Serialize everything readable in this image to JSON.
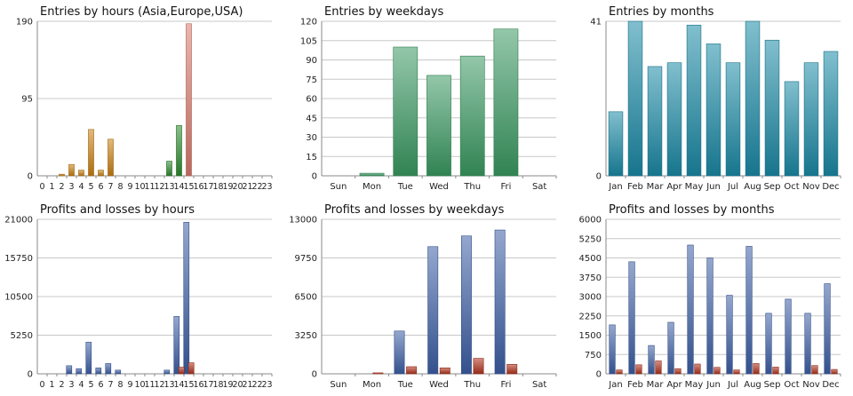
{
  "chart_data": [
    {
      "type": "bar",
      "title": "Entries by hours (Asia,Europe,USA)",
      "categories": [
        "0",
        "1",
        "2",
        "3",
        "4",
        "5",
        "6",
        "7",
        "8",
        "9",
        "10",
        "11",
        "12",
        "13",
        "14",
        "15",
        "16",
        "17",
        "18",
        "19",
        "20",
        "21",
        "22",
        "23"
      ],
      "y_ticks": [
        "0",
        "95",
        "190"
      ],
      "ylim": [
        0,
        190
      ],
      "series": [
        {
          "color": "#c87f12",
          "values": [
            0,
            0,
            2,
            14,
            7,
            57,
            7,
            45,
            0,
            0,
            0,
            0,
            0,
            0,
            0,
            0,
            0,
            0,
            0,
            0,
            0,
            0,
            0,
            0
          ]
        },
        {
          "color": "#2e8a2e",
          "values": [
            0,
            0,
            0,
            0,
            0,
            0,
            0,
            0,
            0,
            0,
            0,
            0,
            0,
            18,
            62,
            0,
            0,
            0,
            0,
            0,
            0,
            0,
            0,
            0
          ]
        },
        {
          "color": "#d87a6c",
          "values": [
            0,
            0,
            0,
            0,
            0,
            0,
            0,
            0,
            0,
            0,
            0,
            0,
            0,
            0,
            0,
            187,
            0,
            0,
            0,
            0,
            0,
            0,
            0,
            0
          ]
        }
      ],
      "grid": true
    },
    {
      "type": "bar",
      "title": "Entries by weekdays",
      "categories": [
        "Sun",
        "Mon",
        "Tue",
        "Wed",
        "Thu",
        "Fri",
        "Sat"
      ],
      "y_ticks": [
        "0",
        "15",
        "30",
        "45",
        "60",
        "75",
        "90",
        "105",
        "120"
      ],
      "ylim": [
        0,
        120
      ],
      "series": [
        {
          "color": "#3a9a62",
          "values": [
            0,
            2,
            100,
            78,
            93,
            114,
            0
          ]
        }
      ],
      "grid": true
    },
    {
      "type": "bar",
      "title": "Entries by months",
      "categories": [
        "Jan",
        "Feb",
        "Mar",
        "Apr",
        "May",
        "Jun",
        "Jul",
        "Aug",
        "Sep",
        "Oct",
        "Nov",
        "Dec"
      ],
      "y_ticks": [
        "0",
        "41"
      ],
      "ylim": [
        0,
        41
      ],
      "series": [
        {
          "color": "#1a8aa6",
          "values": [
            17,
            41,
            29,
            30,
            40,
            35,
            30,
            41,
            36,
            25,
            30,
            33
          ]
        }
      ],
      "grid": true
    },
    {
      "type": "bar",
      "title": "Profits and losses by hours",
      "categories": [
        "0",
        "1",
        "2",
        "3",
        "4",
        "5",
        "6",
        "7",
        "8",
        "9",
        "10",
        "11",
        "12",
        "13",
        "14",
        "15",
        "16",
        "17",
        "18",
        "19",
        "20",
        "21",
        "22",
        "23"
      ],
      "y_ticks": [
        "0",
        "5250",
        "10500",
        "15750",
        "21000"
      ],
      "ylim": [
        0,
        21000
      ],
      "series": [
        {
          "color": "#3d5fa6",
          "values": [
            0,
            0,
            0,
            1100,
            700,
            4300,
            800,
            1400,
            500,
            0,
            0,
            0,
            0,
            500,
            7800,
            20600,
            0,
            0,
            0,
            0,
            0,
            0,
            0,
            0
          ]
        },
        {
          "color": "#b0321c",
          "values": [
            0,
            0,
            0,
            0,
            0,
            0,
            0,
            0,
            0,
            0,
            0,
            0,
            0,
            0,
            900,
            1500,
            0,
            0,
            0,
            0,
            0,
            0,
            0,
            0
          ]
        }
      ],
      "grid": true
    },
    {
      "type": "bar",
      "title": "Profits and losses by weekdays",
      "categories": [
        "Sun",
        "Mon",
        "Tue",
        "Wed",
        "Thu",
        "Fri",
        "Sat"
      ],
      "y_ticks": [
        "0",
        "3250",
        "6500",
        "9750",
        "13000"
      ],
      "ylim": [
        0,
        13000
      ],
      "series": [
        {
          "color": "#3d5fa6",
          "values": [
            0,
            0,
            3600,
            10700,
            11600,
            12100,
            0
          ]
        },
        {
          "color": "#b0321c",
          "values": [
            0,
            80,
            600,
            500,
            1300,
            800,
            0
          ]
        }
      ],
      "grid": true
    },
    {
      "type": "bar",
      "title": "Profits and losses by months",
      "categories": [
        "Jan",
        "Feb",
        "Mar",
        "Apr",
        "May",
        "Jun",
        "Jul",
        "Aug",
        "Sep",
        "Oct",
        "Nov",
        "Dec"
      ],
      "y_ticks": [
        "0",
        "750",
        "1500",
        "2250",
        "3000",
        "3750",
        "4500",
        "5250",
        "6000"
      ],
      "ylim": [
        0,
        6000
      ],
      "series": [
        {
          "color": "#3d5fa6",
          "values": [
            1900,
            4350,
            1100,
            2000,
            5000,
            4500,
            3050,
            4950,
            2350,
            2900,
            2350,
            3500
          ]
        },
        {
          "color": "#b0321c",
          "values": [
            150,
            350,
            500,
            200,
            380,
            250,
            150,
            400,
            260,
            0,
            320,
            170
          ]
        }
      ],
      "grid": true
    }
  ]
}
